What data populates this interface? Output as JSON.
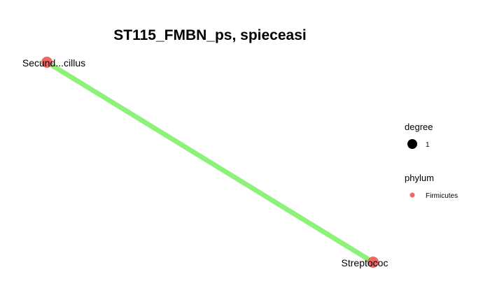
{
  "title": "ST115_FMBN_ps, spieceasi",
  "nodes": [
    {
      "id": "n1",
      "label": "Secund...cillus",
      "phylum": "Firmicutes",
      "degree": 1
    },
    {
      "id": "n2",
      "label": "Streptococ",
      "phylum": "Firmicutes",
      "degree": 1
    }
  ],
  "edges": [
    {
      "from": "n1",
      "to": "n2",
      "color": "#8df27a"
    }
  ],
  "legend": {
    "degree": {
      "title": "degree",
      "items": [
        {
          "label": "1",
          "color": "#000000"
        }
      ]
    },
    "phylum": {
      "title": "phylum",
      "items": [
        {
          "label": "Firmicutes",
          "color": "#ec6a63"
        }
      ]
    }
  },
  "colors": {
    "node": "#ec6a63",
    "edge": "#8df27a"
  }
}
